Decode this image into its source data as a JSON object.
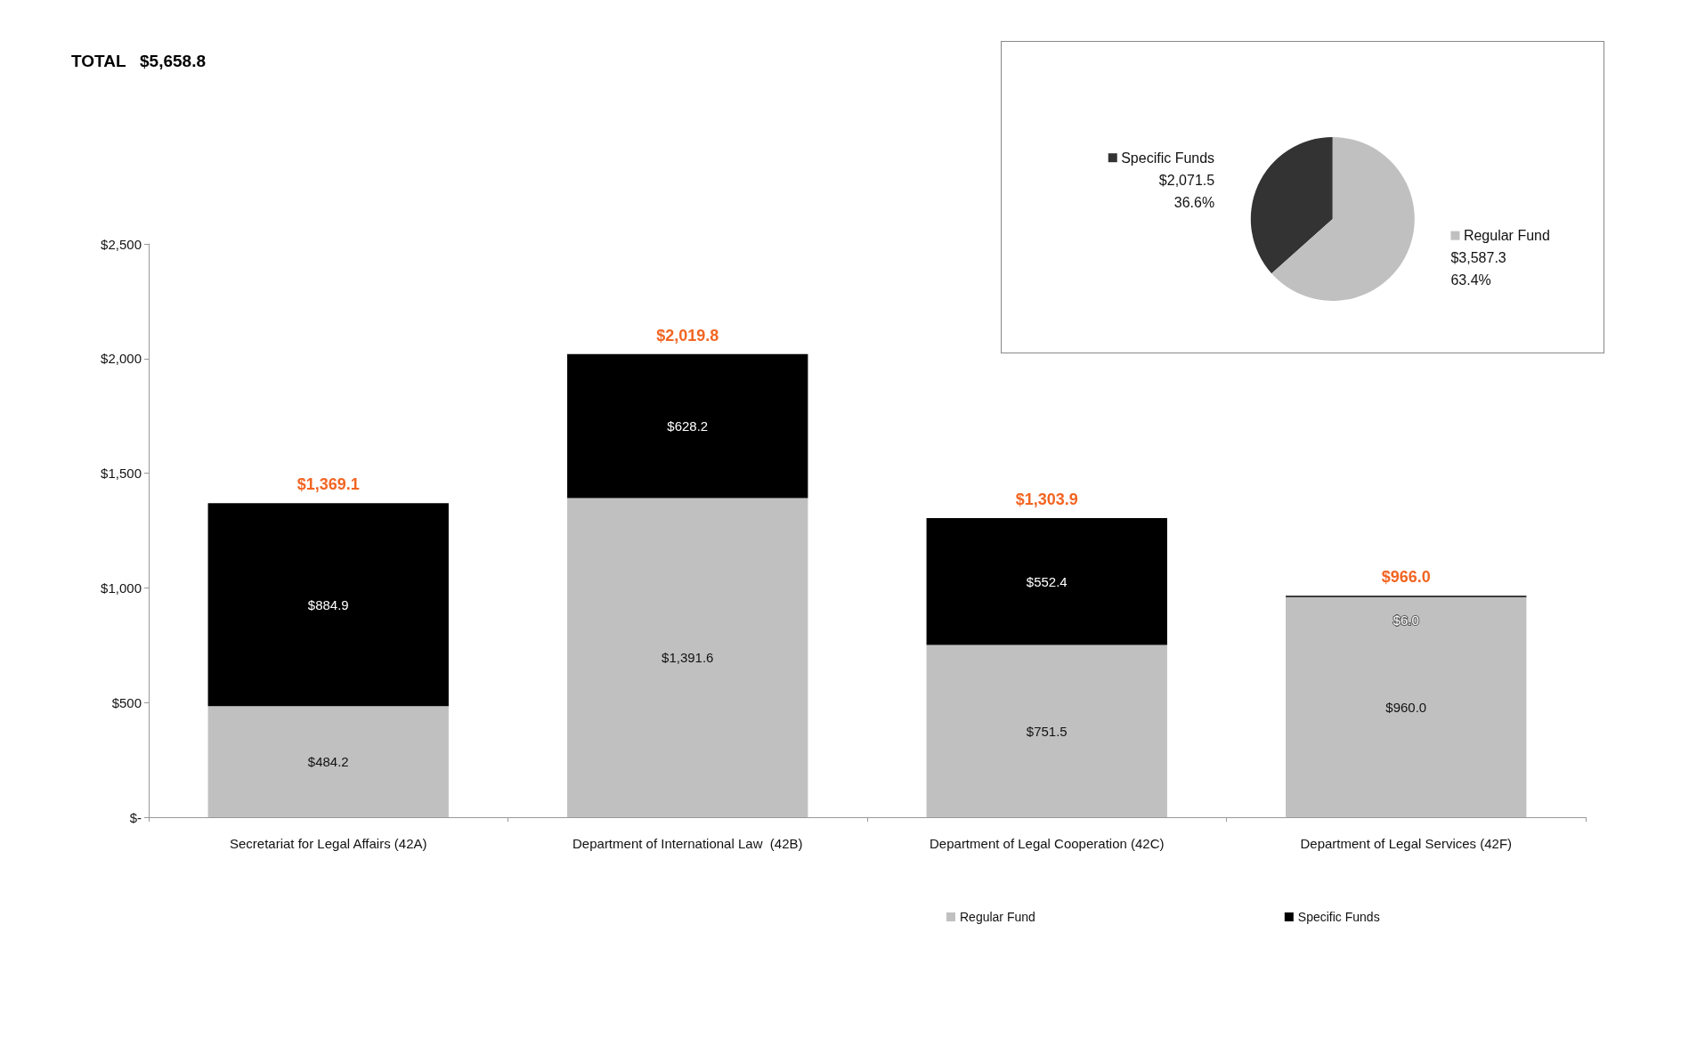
{
  "chart_data": [
    {
      "type": "bar",
      "title": "TOTAL   $5,658.8",
      "stacked": true,
      "categories": [
        "Secretariat for Legal Affairs (42A)",
        "Department of International Law  (42B)",
        "Department of Legal Cooperation (42C)",
        "Department of Legal Services (42F)"
      ],
      "series": [
        {
          "name": "Regular Fund",
          "color": "#c0c0c0",
          "values": [
            484.2,
            1391.6,
            751.5,
            960.0
          ],
          "value_labels": [
            "$484.2",
            "$1,391.6",
            "$751.5",
            "$960.0"
          ]
        },
        {
          "name": "Specific Funds",
          "color": "#000000",
          "values": [
            884.9,
            628.2,
            552.4,
            6.0
          ],
          "value_labels": [
            "$884.9",
            "$628.2",
            "$552.4",
            "$6.0"
          ]
        }
      ],
      "totals": [
        "$1,369.1",
        "$2,019.8",
        "$1,303.9",
        "$966.0"
      ],
      "ylim": [
        0,
        2500
      ],
      "yticks": [
        {
          "value": 0,
          "label": "$-"
        },
        {
          "value": 500,
          "label": "$500"
        },
        {
          "value": 1000,
          "label": "$1,000"
        },
        {
          "value": 1500,
          "label": "$1,500"
        },
        {
          "value": 2000,
          "label": "$2,000"
        },
        {
          "value": 2500,
          "label": "$2,500"
        }
      ],
      "grid": false,
      "legend": "bottom"
    },
    {
      "type": "pie",
      "categories": [
        "Specific Funds",
        "Regular Fund"
      ],
      "values": [
        2071.5,
        3587.3
      ],
      "colors": [
        "#333333",
        "#c0c0c0"
      ],
      "value_labels": [
        "$2,071.5\n36.6%",
        "$3,587.3\n63.4%"
      ],
      "legend": "right"
    }
  ]
}
